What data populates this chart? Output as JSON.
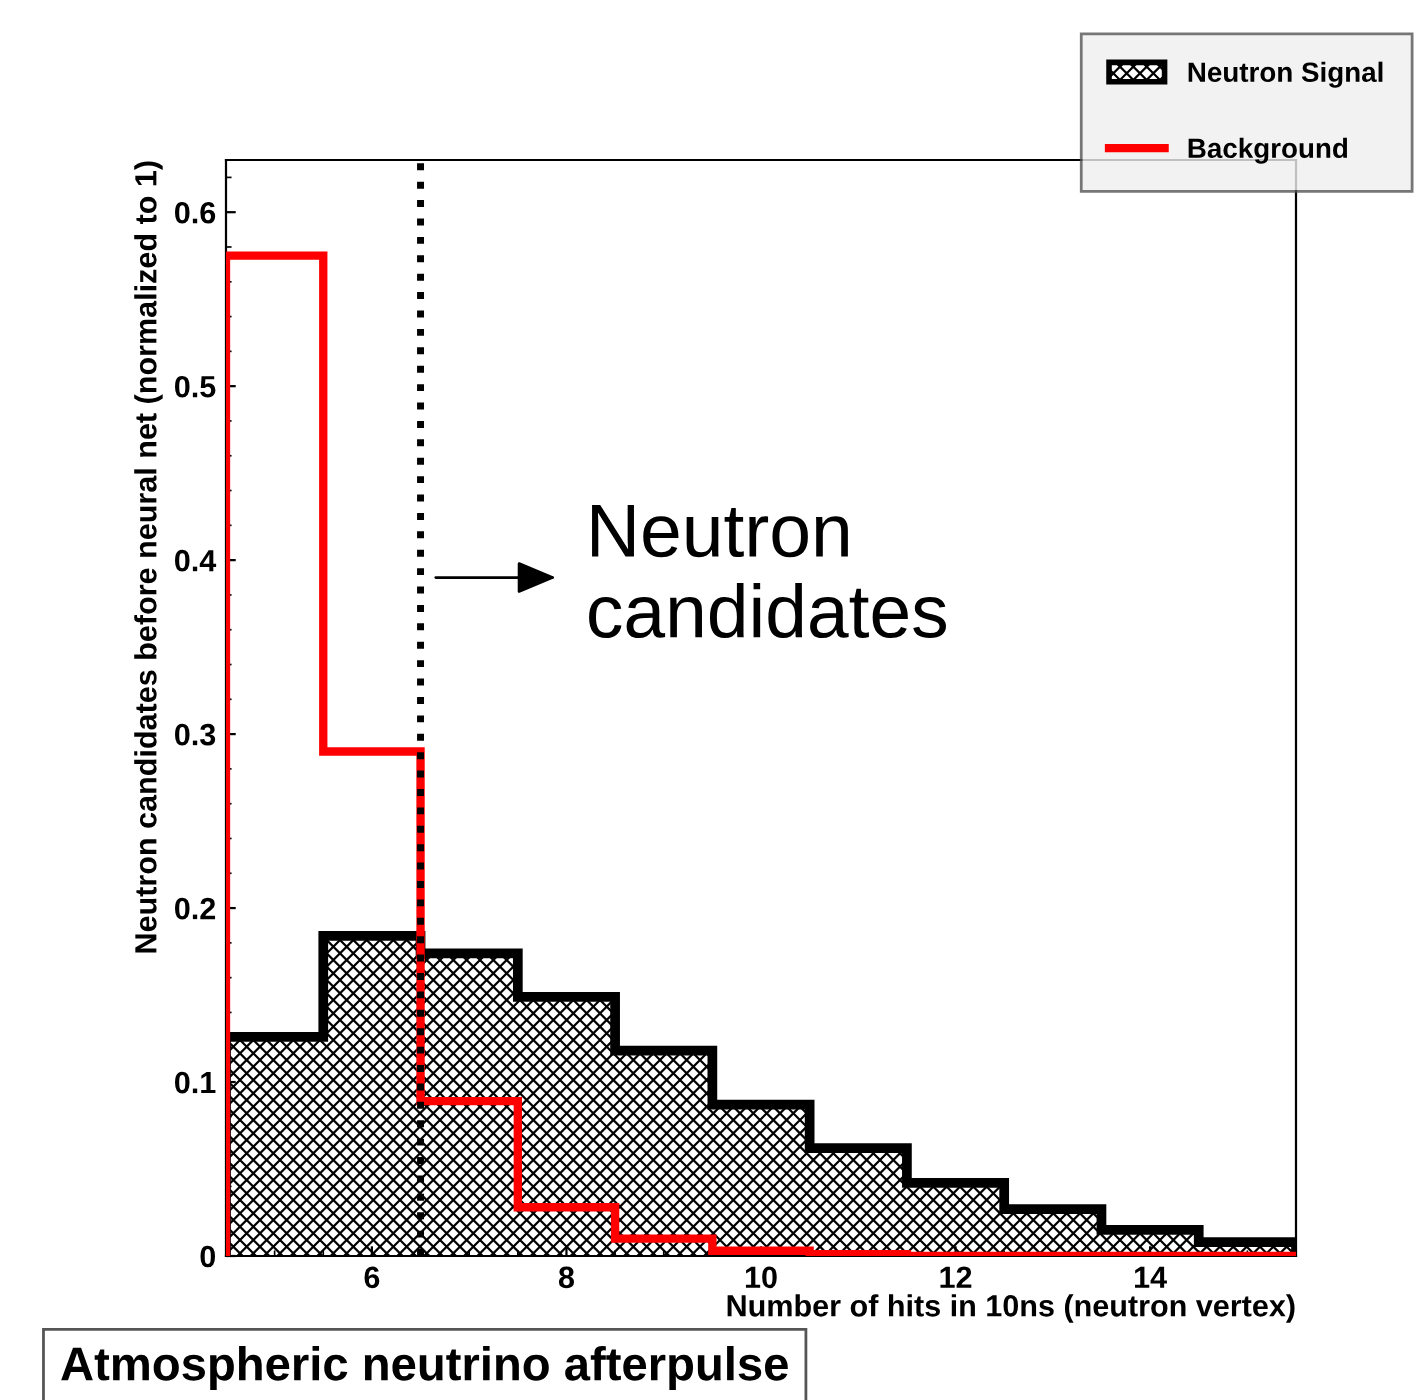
{
  "chart_data": {
    "type": "histogram",
    "title": "Atmospheric neutrino afterpulse",
    "xlabel": "Number of hits in 10ns (neutron vertex)",
    "ylabel": "Neutron candidates before neural net (normalized to 1)",
    "bins": [
      4.5,
      5.5,
      6.5,
      7.5,
      8.5,
      9.5,
      10.5,
      11.5,
      12.5,
      13.5,
      14.5,
      15.5
    ],
    "series": [
      {
        "name": "Neutron Signal",
        "color": "#000000",
        "values": [
          0.126,
          0.184,
          0.174,
          0.149,
          0.118,
          0.087,
          0.062,
          0.042,
          0.027,
          0.015,
          0.008
        ]
      },
      {
        "name": "Background",
        "color": "#ff0000",
        "values": [
          0.575,
          0.29,
          0.089,
          0.028,
          0.01,
          0.003,
          0.001,
          0,
          0,
          0,
          0
        ]
      }
    ],
    "xlim": [
      4.5,
      15.5
    ],
    "ylim": [
      0,
      0.63
    ],
    "xticks": [
      6,
      8,
      10,
      12,
      14
    ],
    "yticks": [
      0,
      0.1,
      0.2,
      0.3,
      0.4,
      0.5,
      0.6
    ],
    "ref_lines": [
      {
        "axis": "x",
        "value": 6.5,
        "color": "#000000",
        "line_style": "dotted"
      }
    ],
    "annotations": [
      {
        "text": "Neutron candidates",
        "x": 6.5,
        "y": 0.39
      }
    ],
    "grid": false,
    "legend": "top right"
  }
}
